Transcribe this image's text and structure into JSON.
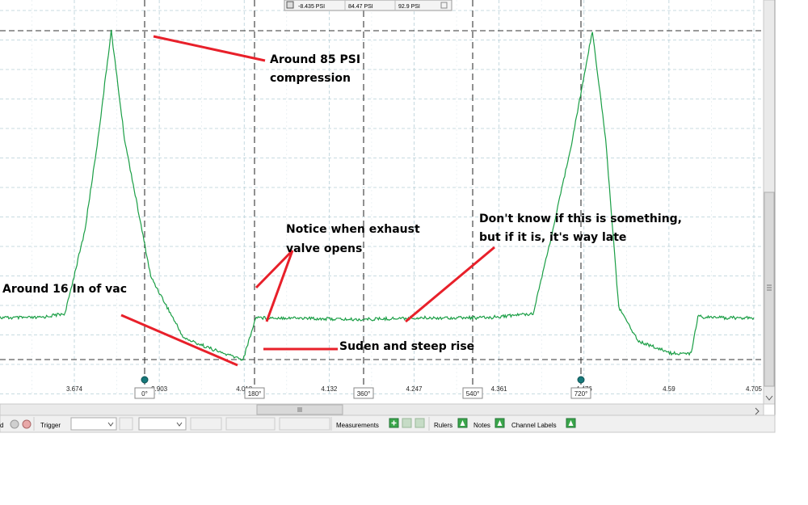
{
  "measurement_row": {
    "min": "-8.435 PSI",
    "avg": "84.47 PSI",
    "max": "92.9 PSI"
  },
  "x_ticks": [
    "3.674",
    "3.903",
    "4.018",
    "4.132",
    "4.247",
    "4.361",
    "4.476",
    "4.59",
    "4.705"
  ],
  "rulers": [
    "0°",
    "180°",
    "360°",
    "540°",
    "720°"
  ],
  "annotations": {
    "compression": [
      "Around 85 PSI",
      "compression"
    ],
    "vacuum": "Around 16 In of vac",
    "exhaust": [
      "Notice when exhaust",
      "valve opens"
    ],
    "unknown": [
      "Don't know if this is something,",
      "but if it is, it's way late"
    ],
    "rise": "Suden and steep rise"
  },
  "toolbar": {
    "trigger_label": "Trigger",
    "measurements_label": "Measurements",
    "rulers_label": "Rulers",
    "notes_label": "Notes",
    "channel_labels_label": "Channel Labels"
  },
  "colors": {
    "trace": "#1a9e45",
    "annotation_line": "#e8202a",
    "grid": "#b7cfd8",
    "window_bg": "#f0f0f0"
  },
  "chart_data": {
    "type": "line",
    "xlabel": "",
    "ylabel": "",
    "x_ticks": [
      "3.674",
      "3.903",
      "4.018",
      "4.132",
      "4.247",
      "4.361",
      "4.476",
      "4.59",
      "4.705"
    ],
    "series": [
      {
        "x": [
          3.5,
          3.62,
          3.66,
          3.69,
          3.71,
          3.73,
          3.75,
          3.79,
          3.84,
          3.9,
          3.93,
          3.95,
          3.96,
          4.0,
          4.1,
          4.2,
          4.3,
          4.37,
          4.4,
          4.43,
          4.46,
          4.48,
          4.5,
          4.53,
          4.58,
          4.61,
          4.62,
          4.64,
          4.705
        ],
        "y": [
          -8.4,
          -8.4,
          -7,
          20,
          50,
          85,
          50,
          5,
          -15,
          -20,
          -22,
          -8,
          -8.4,
          -8.4,
          -9.0,
          -8.4,
          -8.4,
          -7,
          20,
          50,
          85,
          50,
          -5,
          -16,
          -20,
          -20,
          -8,
          -8.4,
          -8.4
        ]
      }
    ],
    "compression_peak_psi": 85,
    "vacuum_in": 16,
    "grid": true
  }
}
